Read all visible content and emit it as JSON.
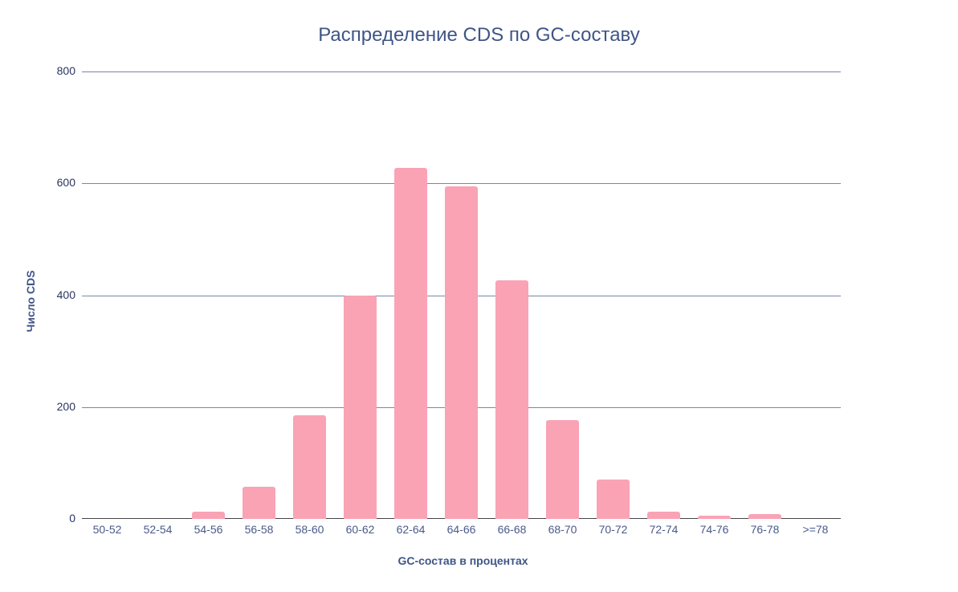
{
  "chart_data": {
    "type": "bar",
    "title": "Распределение CDS по GC-составу",
    "xlabel": "GC-состав в процентах",
    "ylabel": "Число CDS",
    "categories": [
      "50-52",
      "52-54",
      "54-56",
      "56-58",
      "58-60",
      "60-62",
      "62-64",
      "64-66",
      "66-68",
      "68-70",
      "70-72",
      "72-74",
      "74-76",
      "76-78",
      ">=78"
    ],
    "values": [
      0,
      0,
      13,
      57,
      185,
      400,
      628,
      595,
      427,
      177,
      70,
      13,
      6,
      8,
      0
    ],
    "ylim": [
      0,
      800
    ],
    "yticks": [
      0,
      200,
      400,
      600,
      800
    ],
    "grid": true,
    "bar_color": "#f9a3b5",
    "legend": null
  }
}
